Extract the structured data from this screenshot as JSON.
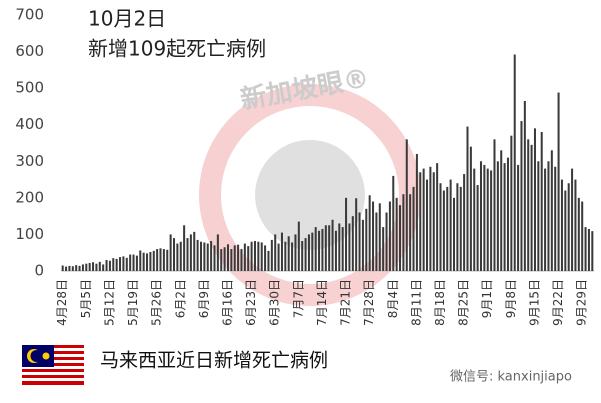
{
  "chart_data": {
    "type": "bar",
    "title": "10月2日",
    "subtitle": "新增109起死亡病例",
    "categories": [
      "4月28日",
      null,
      null,
      null,
      null,
      null,
      null,
      "5月5日",
      null,
      null,
      null,
      null,
      null,
      null,
      "5月12日",
      null,
      null,
      null,
      null,
      null,
      null,
      "5月19日",
      null,
      null,
      null,
      null,
      null,
      null,
      "5月26日",
      null,
      null,
      null,
      null,
      null,
      null,
      "6月2日",
      null,
      null,
      null,
      null,
      null,
      null,
      "6月9日",
      null,
      null,
      null,
      null,
      null,
      null,
      "6月16日",
      null,
      null,
      null,
      null,
      null,
      null,
      "6月23日",
      null,
      null,
      null,
      null,
      null,
      null,
      "6月30日",
      null,
      null,
      null,
      null,
      null,
      null,
      "7月7日",
      null,
      null,
      null,
      null,
      null,
      null,
      "7月14日",
      null,
      null,
      null,
      null,
      null,
      null,
      "7月21日",
      null,
      null,
      null,
      null,
      null,
      null,
      "7月28日",
      null,
      null,
      null,
      null,
      null,
      null,
      "8月4日",
      null,
      null,
      null,
      null,
      null,
      null,
      "8月11日",
      null,
      null,
      null,
      null,
      null,
      null,
      "8月18日",
      null,
      null,
      null,
      null,
      null,
      null,
      "8月25日",
      null,
      null,
      null,
      null,
      null,
      null,
      "9月1日",
      null,
      null,
      null,
      null,
      null,
      null,
      "9月8日",
      null,
      null,
      null,
      null,
      null,
      null,
      "9月15日",
      null,
      null,
      null,
      null,
      null,
      null,
      "9月22日",
      null,
      null,
      null,
      null,
      null,
      null,
      "9月29日",
      null,
      null,
      null
    ],
    "values": [
      15,
      12,
      14,
      13,
      16,
      14,
      18,
      20,
      22,
      24,
      20,
      25,
      18,
      30,
      28,
      35,
      33,
      38,
      40,
      36,
      45,
      45,
      42,
      56,
      50,
      48,
      52,
      55,
      60,
      62,
      60,
      58,
      100,
      90,
      75,
      80,
      125,
      90,
      100,
      107,
      85,
      80,
      78,
      75,
      82,
      70,
      100,
      60,
      65,
      73,
      60,
      70,
      72,
      60,
      75,
      68,
      80,
      82,
      80,
      78,
      70,
      55,
      85,
      100,
      75,
      105,
      80,
      95,
      78,
      100,
      135,
      82,
      90,
      100,
      105,
      120,
      110,
      115,
      125,
      125,
      140,
      110,
      130,
      120,
      200,
      130,
      150,
      199,
      160,
      140,
      170,
      207,
      190,
      160,
      185,
      120,
      160,
      190,
      260,
      200,
      180,
      210,
      360,
      210,
      230,
      320,
      270,
      280,
      250,
      285,
      270,
      295,
      240,
      220,
      230,
      250,
      200,
      240,
      230,
      265,
      395,
      340,
      280,
      235,
      300,
      290,
      280,
      275,
      360,
      300,
      330,
      295,
      310,
      370,
      592,
      290,
      410,
      465,
      360,
      345,
      390,
      300,
      380,
      280,
      300,
      330,
      285,
      488,
      250,
      220,
      240,
      280,
      250,
      200,
      190,
      120,
      115,
      109
    ],
    "color": "#3a3a3a",
    "ylim": [
      0,
      700
    ],
    "yticks": [
      0,
      100,
      200,
      300,
      400,
      500,
      600,
      700
    ],
    "grid": false,
    "watermark": "新加坡眼®"
  },
  "footer": {
    "caption": "马来西亚近日新增死亡病例",
    "source": "微信号: kanxinjiapo"
  }
}
